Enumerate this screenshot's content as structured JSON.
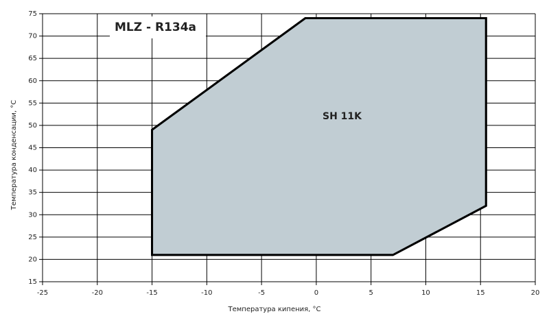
{
  "chart_data": {
    "type": "polygon",
    "title": "MLZ - R134a",
    "annotation": "SH 11K",
    "x_label": "Температура кипения, °C",
    "y_label": "Температура конденсации, °C",
    "x": [
      -15,
      -15,
      -1,
      15.5,
      15.5,
      7
    ],
    "y": [
      21,
      49,
      74,
      74,
      32,
      21
    ],
    "color": "#c1cdd3",
    "xlim": [
      -25,
      20
    ],
    "xticks": [
      -25,
      -20,
      -15,
      -10,
      -5,
      0,
      5,
      10,
      15,
      20
    ],
    "ylim": [
      15,
      75
    ],
    "yticks": [
      15,
      20,
      25,
      30,
      35,
      40,
      45,
      50,
      55,
      60,
      65,
      70,
      75
    ],
    "grid": true
  }
}
